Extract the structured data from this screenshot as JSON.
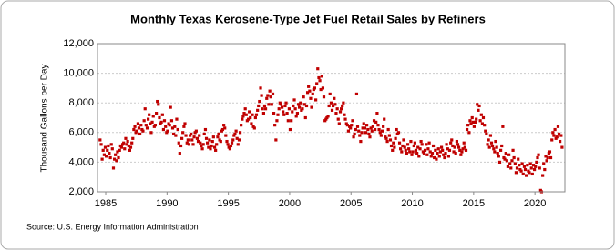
{
  "chart_data": {
    "type": "scatter",
    "title": "Monthly Texas Kerosene-Type Jet Fuel Retail Sales by Refiners",
    "y_label": "Thousand Gallons per Day",
    "source": "Source: U.S. Energy Information Administration",
    "xlim": [
      1984.33,
      2022.44
    ],
    "xticks": [
      1985,
      1990,
      1995,
      2000,
      2005,
      2010,
      2015,
      2020
    ],
    "ylim": [
      2000,
      12000
    ],
    "yticks": [
      {
        "value": 2000,
        "label": "2,000"
      },
      {
        "value": 4000,
        "label": "4,000"
      },
      {
        "value": 6000,
        "label": "6,000"
      },
      {
        "value": 8000,
        "label": "8,000"
      },
      {
        "value": 10000,
        "label": "10,000"
      },
      {
        "value": 12000,
        "label": "12,000"
      }
    ],
    "grid": true,
    "color": "#c00000",
    "x": [
      1984.54,
      1984.63,
      1984.71,
      1984.79,
      1984.88,
      1984.96,
      1985.04,
      1985.13,
      1985.21,
      1985.29,
      1985.38,
      1985.46,
      1985.54,
      1985.63,
      1985.71,
      1985.79,
      1985.88,
      1985.96,
      1986.04,
      1986.13,
      1986.21,
      1986.29,
      1986.38,
      1986.46,
      1986.54,
      1986.63,
      1986.71,
      1986.79,
      1986.88,
      1986.96,
      1987.04,
      1987.13,
      1987.21,
      1987.29,
      1987.38,
      1987.46,
      1987.54,
      1987.63,
      1987.71,
      1987.79,
      1987.88,
      1987.96,
      1988.04,
      1988.13,
      1988.21,
      1988.29,
      1988.38,
      1988.46,
      1988.54,
      1988.63,
      1988.71,
      1988.79,
      1988.88,
      1988.96,
      1989.04,
      1989.13,
      1989.21,
      1989.29,
      1989.38,
      1989.46,
      1989.54,
      1989.63,
      1989.71,
      1989.79,
      1989.88,
      1989.96,
      1990.04,
      1990.13,
      1990.21,
      1990.29,
      1990.38,
      1990.46,
      1990.54,
      1990.63,
      1990.71,
      1990.79,
      1990.88,
      1990.96,
      1991.04,
      1991.13,
      1991.21,
      1991.29,
      1991.38,
      1991.46,
      1991.54,
      1991.63,
      1991.71,
      1991.79,
      1991.88,
      1991.96,
      1992.04,
      1992.13,
      1992.21,
      1992.29,
      1992.38,
      1992.46,
      1992.54,
      1992.63,
      1992.71,
      1992.79,
      1992.88,
      1992.96,
      1993.04,
      1993.13,
      1993.21,
      1993.29,
      1993.38,
      1993.46,
      1993.54,
      1993.63,
      1993.71,
      1993.79,
      1993.88,
      1993.96,
      1994.04,
      1994.13,
      1994.21,
      1994.29,
      1994.38,
      1994.46,
      1994.54,
      1994.63,
      1994.71,
      1994.79,
      1994.88,
      1994.96,
      1995.04,
      1995.13,
      1995.21,
      1995.29,
      1995.38,
      1995.46,
      1995.54,
      1995.63,
      1995.71,
      1995.79,
      1995.88,
      1995.96,
      1996.04,
      1996.13,
      1996.21,
      1996.29,
      1996.38,
      1996.46,
      1996.54,
      1996.63,
      1996.71,
      1996.79,
      1996.88,
      1996.96,
      1997.04,
      1997.13,
      1997.21,
      1997.29,
      1997.38,
      1997.46,
      1997.54,
      1997.63,
      1997.71,
      1997.79,
      1997.88,
      1997.96,
      1998.04,
      1998.13,
      1998.21,
      1998.29,
      1998.38,
      1998.46,
      1998.54,
      1998.63,
      1998.71,
      1998.79,
      1998.88,
      1998.96,
      1999.04,
      1999.13,
      1999.21,
      1999.29,
      1999.38,
      1999.46,
      1999.54,
      1999.63,
      1999.71,
      1999.79,
      1999.88,
      1999.96,
      2000.04,
      2000.13,
      2000.21,
      2000.29,
      2000.38,
      2000.46,
      2000.54,
      2000.63,
      2000.71,
      2000.79,
      2000.88,
      2000.96,
      2001.04,
      2001.13,
      2001.21,
      2001.29,
      2001.38,
      2001.46,
      2001.54,
      2001.63,
      2001.71,
      2001.79,
      2001.88,
      2001.96,
      2002.04,
      2002.13,
      2002.21,
      2002.29,
      2002.38,
      2002.46,
      2002.54,
      2002.63,
      2002.71,
      2002.79,
      2002.88,
      2002.96,
      2003.04,
      2003.13,
      2003.21,
      2003.29,
      2003.38,
      2003.46,
      2003.54,
      2003.63,
      2003.71,
      2003.79,
      2003.88,
      2003.96,
      2004.04,
      2004.13,
      2004.21,
      2004.29,
      2004.38,
      2004.46,
      2004.54,
      2004.63,
      2004.71,
      2004.79,
      2004.88,
      2004.96,
      2005.04,
      2005.13,
      2005.21,
      2005.29,
      2005.38,
      2005.46,
      2005.54,
      2005.63,
      2005.71,
      2005.79,
      2005.88,
      2005.96,
      2006.04,
      2006.13,
      2006.21,
      2006.29,
      2006.38,
      2006.46,
      2006.54,
      2006.63,
      2006.71,
      2006.79,
      2006.88,
      2006.96,
      2007.04,
      2007.13,
      2007.21,
      2007.29,
      2007.38,
      2007.46,
      2007.54,
      2007.63,
      2007.71,
      2007.79,
      2007.88,
      2007.96,
      2008.04,
      2008.13,
      2008.21,
      2008.29,
      2008.38,
      2008.46,
      2008.54,
      2008.63,
      2008.71,
      2008.79,
      2008.88,
      2008.96,
      2009.04,
      2009.13,
      2009.21,
      2009.29,
      2009.38,
      2009.46,
      2009.54,
      2009.63,
      2009.71,
      2009.79,
      2009.88,
      2009.96,
      2010.04,
      2010.13,
      2010.21,
      2010.29,
      2010.38,
      2010.46,
      2010.54,
      2010.63,
      2010.71,
      2010.79,
      2010.88,
      2010.96,
      2011.04,
      2011.13,
      2011.21,
      2011.29,
      2011.38,
      2011.46,
      2011.54,
      2011.63,
      2011.71,
      2011.79,
      2011.88,
      2011.96,
      2012.04,
      2012.13,
      2012.21,
      2012.29,
      2012.38,
      2012.46,
      2012.54,
      2012.63,
      2012.71,
      2012.79,
      2012.88,
      2012.96,
      2013.04,
      2013.13,
      2013.21,
      2013.29,
      2013.38,
      2013.46,
      2013.54,
      2013.63,
      2013.71,
      2013.79,
      2013.88,
      2013.96,
      2014.04,
      2014.13,
      2014.21,
      2014.29,
      2014.38,
      2014.46,
      2014.54,
      2014.63,
      2014.71,
      2014.79,
      2014.88,
      2014.96,
      2015.04,
      2015.13,
      2015.21,
      2015.29,
      2015.38,
      2015.46,
      2015.54,
      2015.63,
      2015.71,
      2015.79,
      2015.88,
      2015.96,
      2016.04,
      2016.13,
      2016.21,
      2016.29,
      2016.38,
      2016.46,
      2016.54,
      2016.63,
      2016.71,
      2016.79,
      2016.88,
      2016.96,
      2017.04,
      2017.13,
      2017.21,
      2017.29,
      2017.38,
      2017.46,
      2017.54,
      2017.63,
      2017.71,
      2017.79,
      2017.88,
      2017.96,
      2018.04,
      2018.13,
      2018.21,
      2018.29,
      2018.38,
      2018.46,
      2018.54,
      2018.63,
      2018.71,
      2018.79,
      2018.88,
      2018.96,
      2019.04,
      2019.13,
      2019.21,
      2019.29,
      2019.38,
      2019.46,
      2019.54,
      2019.63,
      2019.71,
      2019.79,
      2019.88,
      2019.96,
      2020.04,
      2020.13,
      2020.21,
      2020.29,
      2020.38,
      2020.46,
      2020.54,
      2020.63,
      2020.71,
      2020.79,
      2020.88,
      2020.96,
      2021.04,
      2021.13,
      2021.21,
      2021.29,
      2021.38,
      2021.46,
      2021.54,
      2021.63,
      2021.71,
      2021.79,
      2021.88,
      2021.96,
      2022.04,
      2022.13,
      2022.21
    ],
    "values": [
      5500,
      5200,
      4200,
      4800,
      4500,
      5000,
      4400,
      4800,
      5100,
      4600,
      4300,
      5200,
      4900,
      3600,
      4200,
      4500,
      4100,
      4700,
      4300,
      4800,
      5100,
      5000,
      5200,
      5300,
      4900,
      5600,
      5200,
      5400,
      5100,
      4800,
      5000,
      5300,
      5600,
      6200,
      6400,
      6000,
      6100,
      6600,
      6300,
      5900,
      6500,
      6200,
      6100,
      6800,
      7600,
      6500,
      6300,
      6900,
      7200,
      6600,
      6000,
      6700,
      7100,
      6400,
      6500,
      7300,
      8100,
      7900,
      7000,
      6600,
      6700,
      7200,
      6200,
      6800,
      6400,
      6000,
      6100,
      6600,
      6500,
      7700,
      6800,
      6300,
      5900,
      6400,
      5800,
      6900,
      6200,
      5300,
      4600,
      5100,
      5600,
      6000,
      6400,
      6600,
      5800,
      5300,
      5500,
      5200,
      5800,
      5900,
      5500,
      5200,
      5700,
      6000,
      6100,
      5600,
      5400,
      5800,
      5300,
      5100,
      4900,
      5200,
      5900,
      6200,
      5600,
      5300,
      5000,
      5500,
      4900,
      5100,
      5400,
      5700,
      5000,
      4800,
      5200,
      5700,
      5900,
      5500,
      5400,
      6100,
      6200,
      6500,
      6300,
      5800,
      5400,
      5200,
      5000,
      4900,
      5100,
      5300,
      5500,
      5800,
      5900,
      6100,
      5600,
      5200,
      5500,
      6000,
      6500,
      6900,
      7100,
      7300,
      7600,
      7200,
      6800,
      6900,
      7400,
      7000,
      6600,
      7200,
      6400,
      6300,
      7000,
      7200,
      7500,
      7800,
      8100,
      9000,
      8500,
      7600,
      7300,
      7800,
      7600,
      8300,
      8500,
      7900,
      8800,
      8400,
      7900,
      8600,
      7300,
      6500,
      5500,
      6800,
      7200,
      7600,
      8000,
      7900,
      7700,
      7400,
      7200,
      7800,
      8000,
      7300,
      6800,
      7600,
      6200,
      6800,
      7400,
      7800,
      8200,
      7600,
      7100,
      7300,
      7900,
      7700,
      8000,
      7500,
      7600,
      8400,
      7900,
      7000,
      7800,
      8700,
      9100,
      8800,
      8300,
      7700,
      8600,
      8900,
      9000,
      8200,
      9300,
      10300,
      9700,
      9500,
      8900,
      9800,
      9000,
      8400,
      6800,
      6900,
      7000,
      7100,
      7800,
      8600,
      8000,
      7500,
      7800,
      8300,
      7900,
      7300,
      7600,
      6900,
      6600,
      7400,
      7600,
      7800,
      8000,
      7200,
      6900,
      6600,
      6500,
      6100,
      6400,
      6300,
      6500,
      6800,
      5700,
      5900,
      6200,
      8600,
      6400,
      6100,
      5800,
      5400,
      6000,
      6300,
      6600,
      6300,
      6000,
      6500,
      6200,
      5900,
      5700,
      6300,
      6100,
      6400,
      6800,
      6200,
      6700,
      7300,
      6500,
      6200,
      6000,
      5800,
      6100,
      6400,
      6900,
      5700,
      5600,
      5400,
      6200,
      5800,
      5500,
      5100,
      4800,
      5300,
      5000,
      5600,
      6200,
      5900,
      6000,
      5300,
      4900,
      4700,
      5100,
      5500,
      5000,
      4800,
      4600,
      5200,
      4900,
      4700,
      5400,
      4500,
      4700,
      5100,
      5300,
      4800,
      4600,
      5000,
      4400,
      4900,
      5400,
      5200,
      4700,
      4600,
      4800,
      5200,
      4500,
      4900,
      5300,
      4700,
      4400,
      4600,
      5100,
      4300,
      4800,
      4200,
      4600,
      4900,
      4400,
      4700,
      5000,
      4800,
      4500,
      4300,
      4600,
      5200,
      4900,
      4400,
      4800,
      5300,
      5500,
      5100,
      4700,
      5000,
      4600,
      5400,
      5200,
      5000,
      4800,
      4500,
      4700,
      4900,
      5300,
      5000,
      4800,
      6200,
      6500,
      6000,
      6800,
      6600,
      7000,
      6700,
      6400,
      6700,
      6900,
      7900,
      7500,
      7800,
      6800,
      7200,
      6600,
      7000,
      6500,
      6100,
      5900,
      5200,
      5500,
      5000,
      5800,
      5300,
      5100,
      4900,
      4700,
      5400,
      5000,
      4600,
      4400,
      4000,
      4800,
      5100,
      6400,
      4300,
      4200,
      4600,
      4100,
      3700,
      4500,
      3900,
      3600,
      4100,
      4800,
      4300,
      3900,
      3300,
      3600,
      4200,
      3800,
      3500,
      3400,
      3900,
      3200,
      3700,
      3500,
      3100,
      3800,
      3400,
      3300,
      3900,
      3600,
      3200,
      3800,
      3500,
      3700,
      4000,
      4300,
      4500,
      3600,
      2100,
      2000,
      3100,
      3900,
      3500,
      4400,
      4100,
      4300,
      4600,
      4700,
      4300,
      5500,
      6000,
      5800,
      6200,
      5600,
      5700,
      6400,
      5900,
      5400,
      5800,
      5000
    ]
  }
}
